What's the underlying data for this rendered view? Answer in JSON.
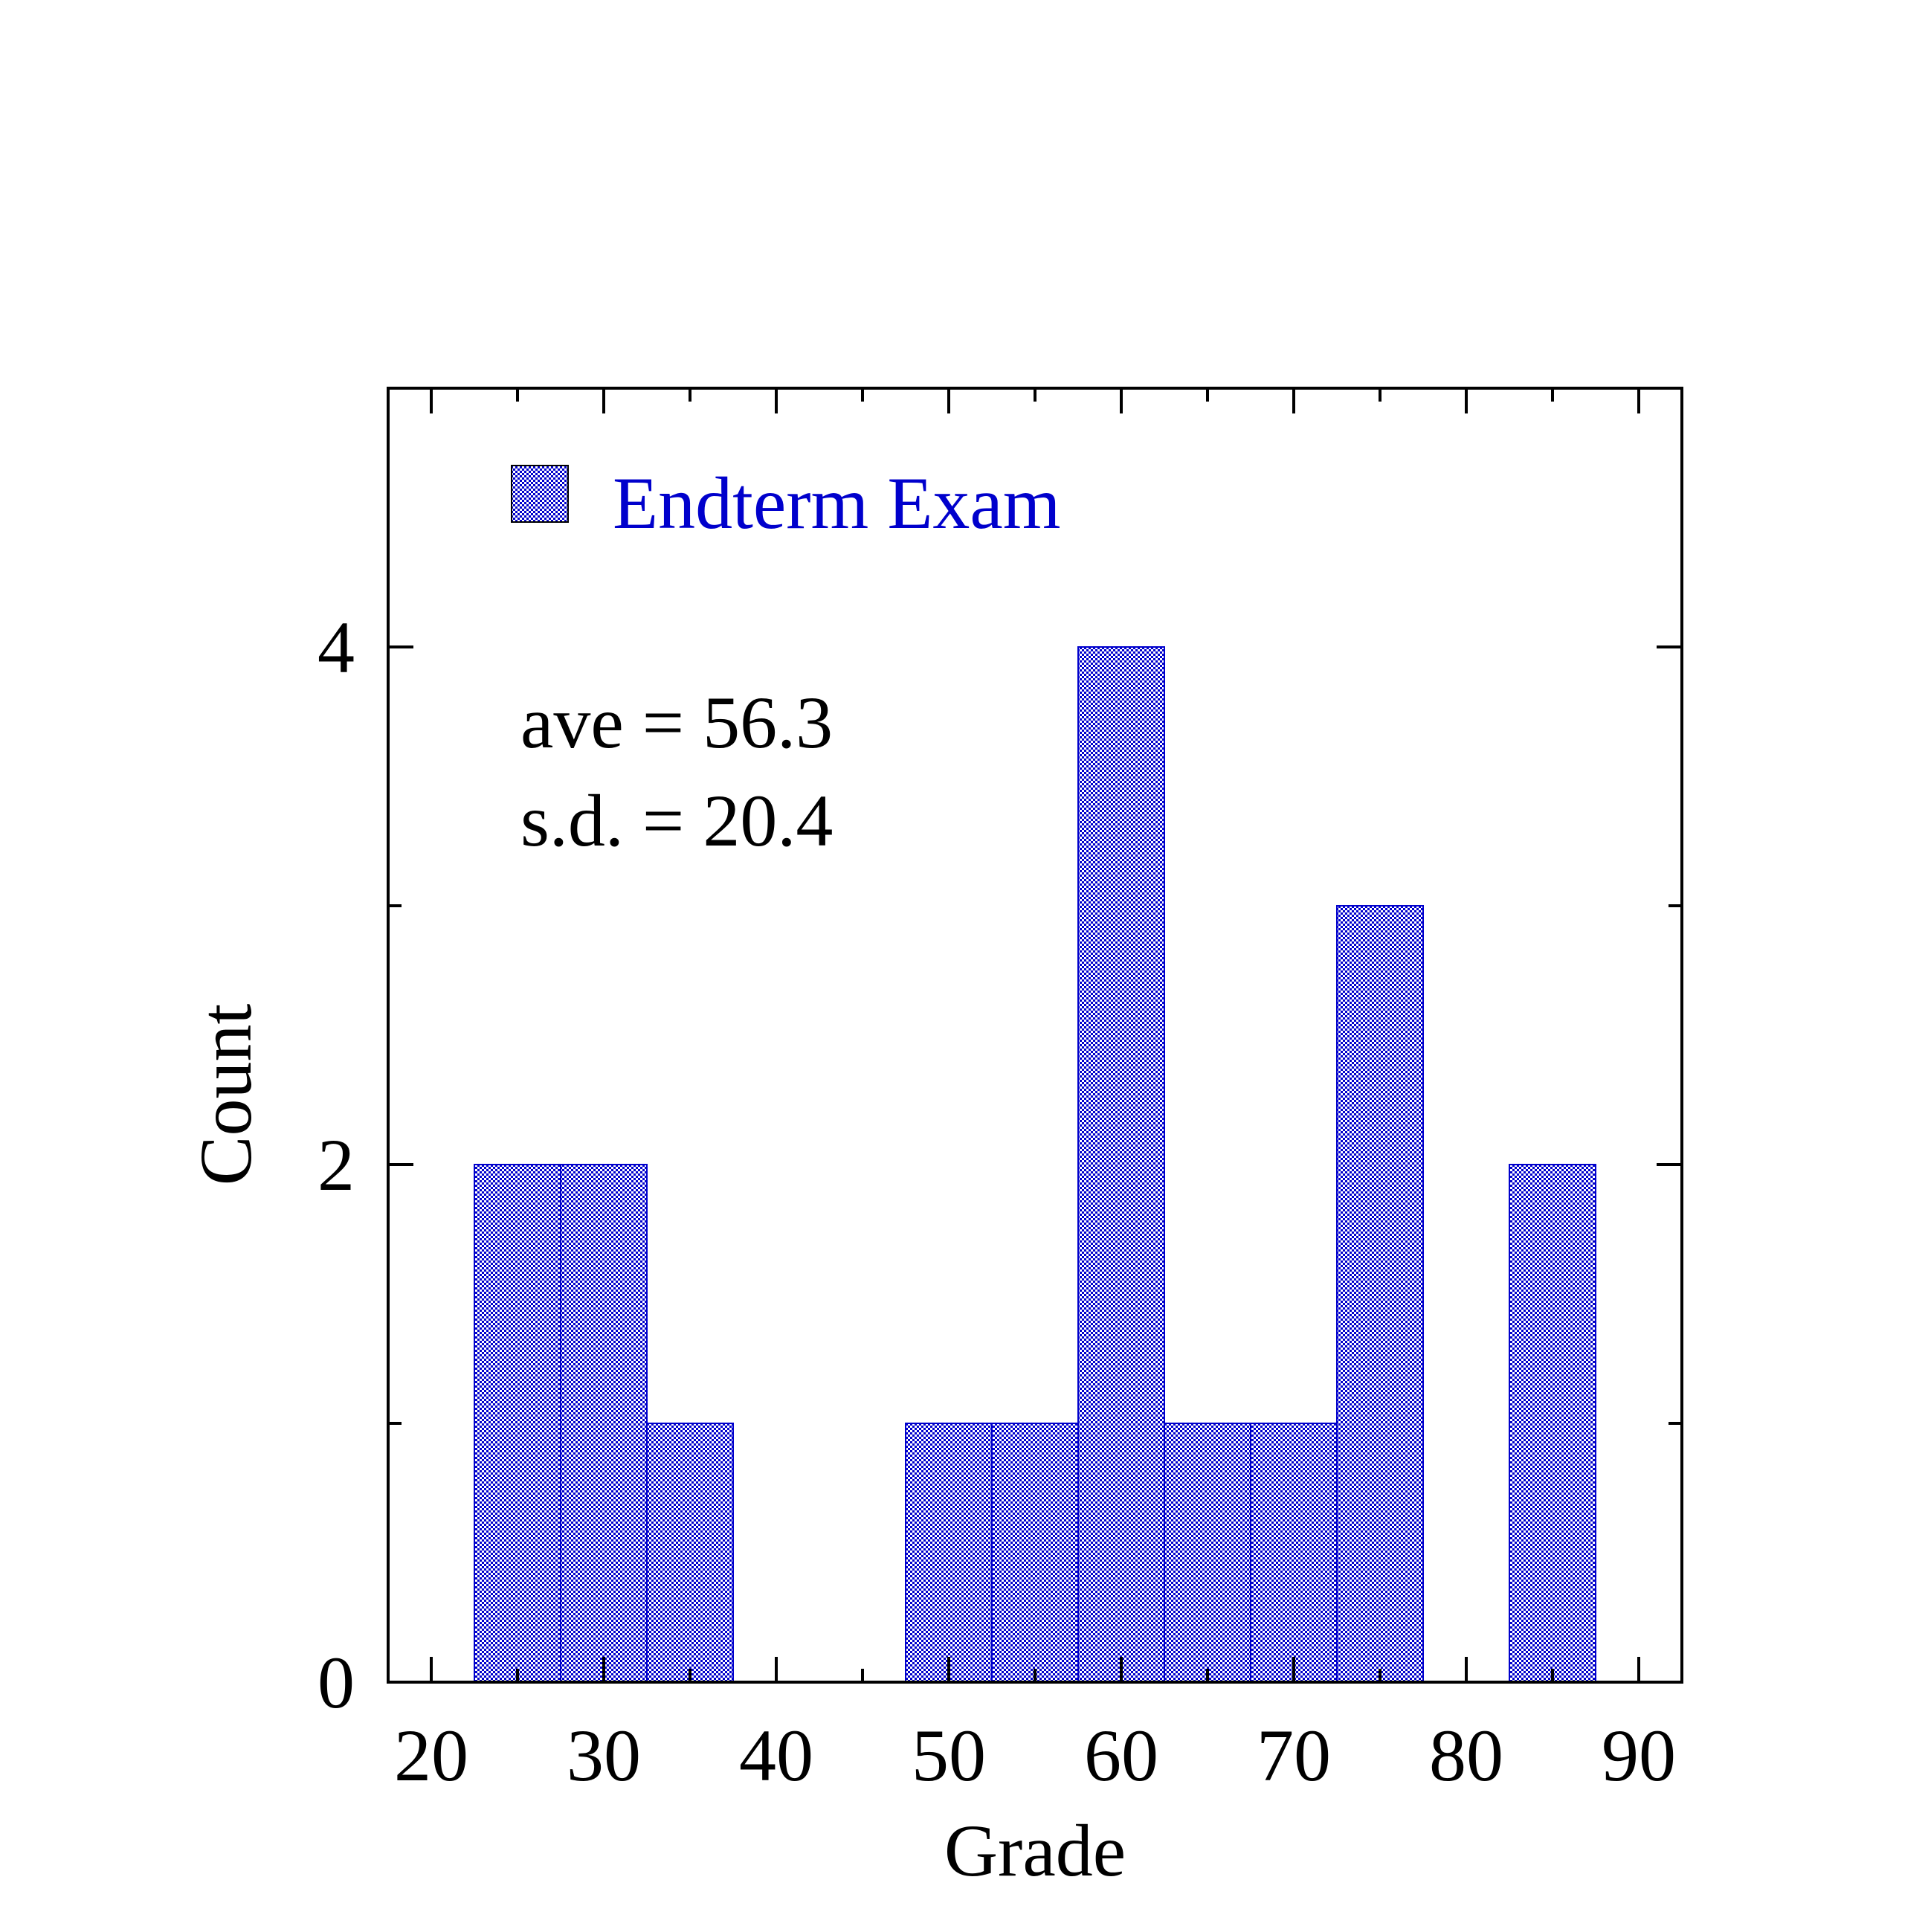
{
  "chart_data": {
    "type": "bar",
    "subtype": "histogram",
    "xlabel": "Grade",
    "ylabel": "Count",
    "xlim": [
      17.5,
      92.5
    ],
    "ylim": [
      0,
      5
    ],
    "x_ticks": [
      20,
      30,
      40,
      50,
      60,
      70,
      80,
      90
    ],
    "y_ticks": [
      0,
      2,
      4
    ],
    "bin_width": 5,
    "bins": [
      {
        "x": 25,
        "count": 2
      },
      {
        "x": 30,
        "count": 2
      },
      {
        "x": 35,
        "count": 1
      },
      {
        "x": 40,
        "count": 0
      },
      {
        "x": 45,
        "count": 0
      },
      {
        "x": 50,
        "count": 1
      },
      {
        "x": 55,
        "count": 1
      },
      {
        "x": 60,
        "count": 4
      },
      {
        "x": 65,
        "count": 1
      },
      {
        "x": 70,
        "count": 1
      },
      {
        "x": 75,
        "count": 3
      },
      {
        "x": 80,
        "count": 0
      },
      {
        "x": 85,
        "count": 2
      }
    ],
    "series": [
      {
        "name": "Endterm Exam",
        "color": "#0000cc"
      }
    ],
    "legend": {
      "placement": "top-left"
    },
    "annotations": [
      "ave = 56.3",
      "s.d. = 20.4"
    ],
    "grid": false
  }
}
